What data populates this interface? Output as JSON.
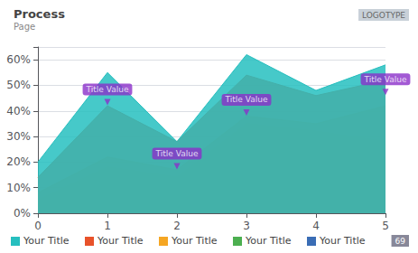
{
  "chart_data": {
    "type": "area",
    "title": "Process",
    "subtitle": "Page",
    "x": [
      0,
      1,
      2,
      3,
      4,
      5
    ],
    "series": [
      {
        "name": "Your Title",
        "color": "#3a6db5",
        "values": [
          2,
          13,
          13,
          30,
          30,
          20
        ]
      },
      {
        "name": "Your Title",
        "color": "#4caf50",
        "values": [
          5,
          18,
          14,
          35,
          32,
          28
        ]
      },
      {
        "name": "Your Title",
        "color": "#f5a623",
        "values": [
          8,
          22,
          17,
          38,
          35,
          42
        ]
      },
      {
        "name": "Your Title",
        "color": "#e8522a",
        "values": [
          14,
          42,
          28,
          54,
          46,
          52
        ]
      },
      {
        "name": "Your Title",
        "color": "#26bfbf",
        "values": [
          20,
          55,
          28,
          62,
          48,
          58
        ]
      }
    ],
    "xlim": [
      0,
      5
    ],
    "xticks": [
      0,
      1,
      2,
      3,
      4,
      5
    ],
    "ylim": [
      0,
      65
    ],
    "yticks": [
      {
        "value": 0,
        "label": "0%"
      },
      {
        "value": 10,
        "label": "10%"
      },
      {
        "value": 20,
        "label": "20%"
      },
      {
        "value": 30,
        "label": "30%"
      },
      {
        "value": 40,
        "label": "40%"
      },
      {
        "value": 50,
        "label": "50%"
      },
      {
        "value": 60,
        "label": "60%"
      }
    ],
    "grid": true,
    "legend": "bottom",
    "annotations": [
      {
        "x": 1,
        "y": 42,
        "text": "Title Value",
        "color": "#8b2fc9"
      },
      {
        "x": 2,
        "y": 17,
        "text": "Title Value",
        "color": "#8b2fc9"
      },
      {
        "x": 3,
        "y": 38,
        "text": "Title Value",
        "color": "#8b2fc9"
      },
      {
        "x": 5,
        "y": 46,
        "text": "Title Value",
        "color": "#8b2fc9"
      },
      {
        "text": "LOGOTYPE"
      },
      {
        "text": "69"
      }
    ]
  }
}
